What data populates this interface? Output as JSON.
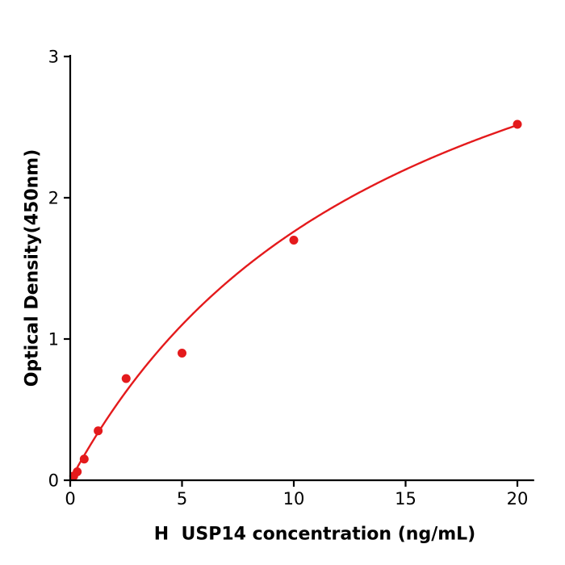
{
  "chart_data": {
    "type": "scatter",
    "title": "",
    "xlabel": "H  USP14 concentration (ng/mL)",
    "ylabel": "Optical Density(450nm)",
    "xlim": [
      0,
      20.75
    ],
    "ylim": [
      0,
      3
    ],
    "xticks": [
      0,
      5,
      10,
      15,
      20
    ],
    "yticks": [
      0,
      1,
      2,
      3
    ],
    "grid": false,
    "legend_position": "none",
    "point_color": "#e41a1c",
    "curve_color": "#e41a1c",
    "axis_color": "#000000",
    "series": [
      {
        "marker": "circle",
        "points": [
          {
            "x": 0.156,
            "y": 0.03
          },
          {
            "x": 0.313,
            "y": 0.06
          },
          {
            "x": 0.625,
            "y": 0.15
          },
          {
            "x": 1.25,
            "y": 0.35
          },
          {
            "x": 2.5,
            "y": 0.72
          },
          {
            "x": 5,
            "y": 0.9
          },
          {
            "x": 10,
            "y": 1.7
          },
          {
            "x": 20,
            "y": 2.52
          }
        ]
      }
    ],
    "fit_curve": {
      "type": "michaelis_menten",
      "vmax": 4.4,
      "km": 15,
      "x_range": [
        0,
        20
      ]
    }
  }
}
